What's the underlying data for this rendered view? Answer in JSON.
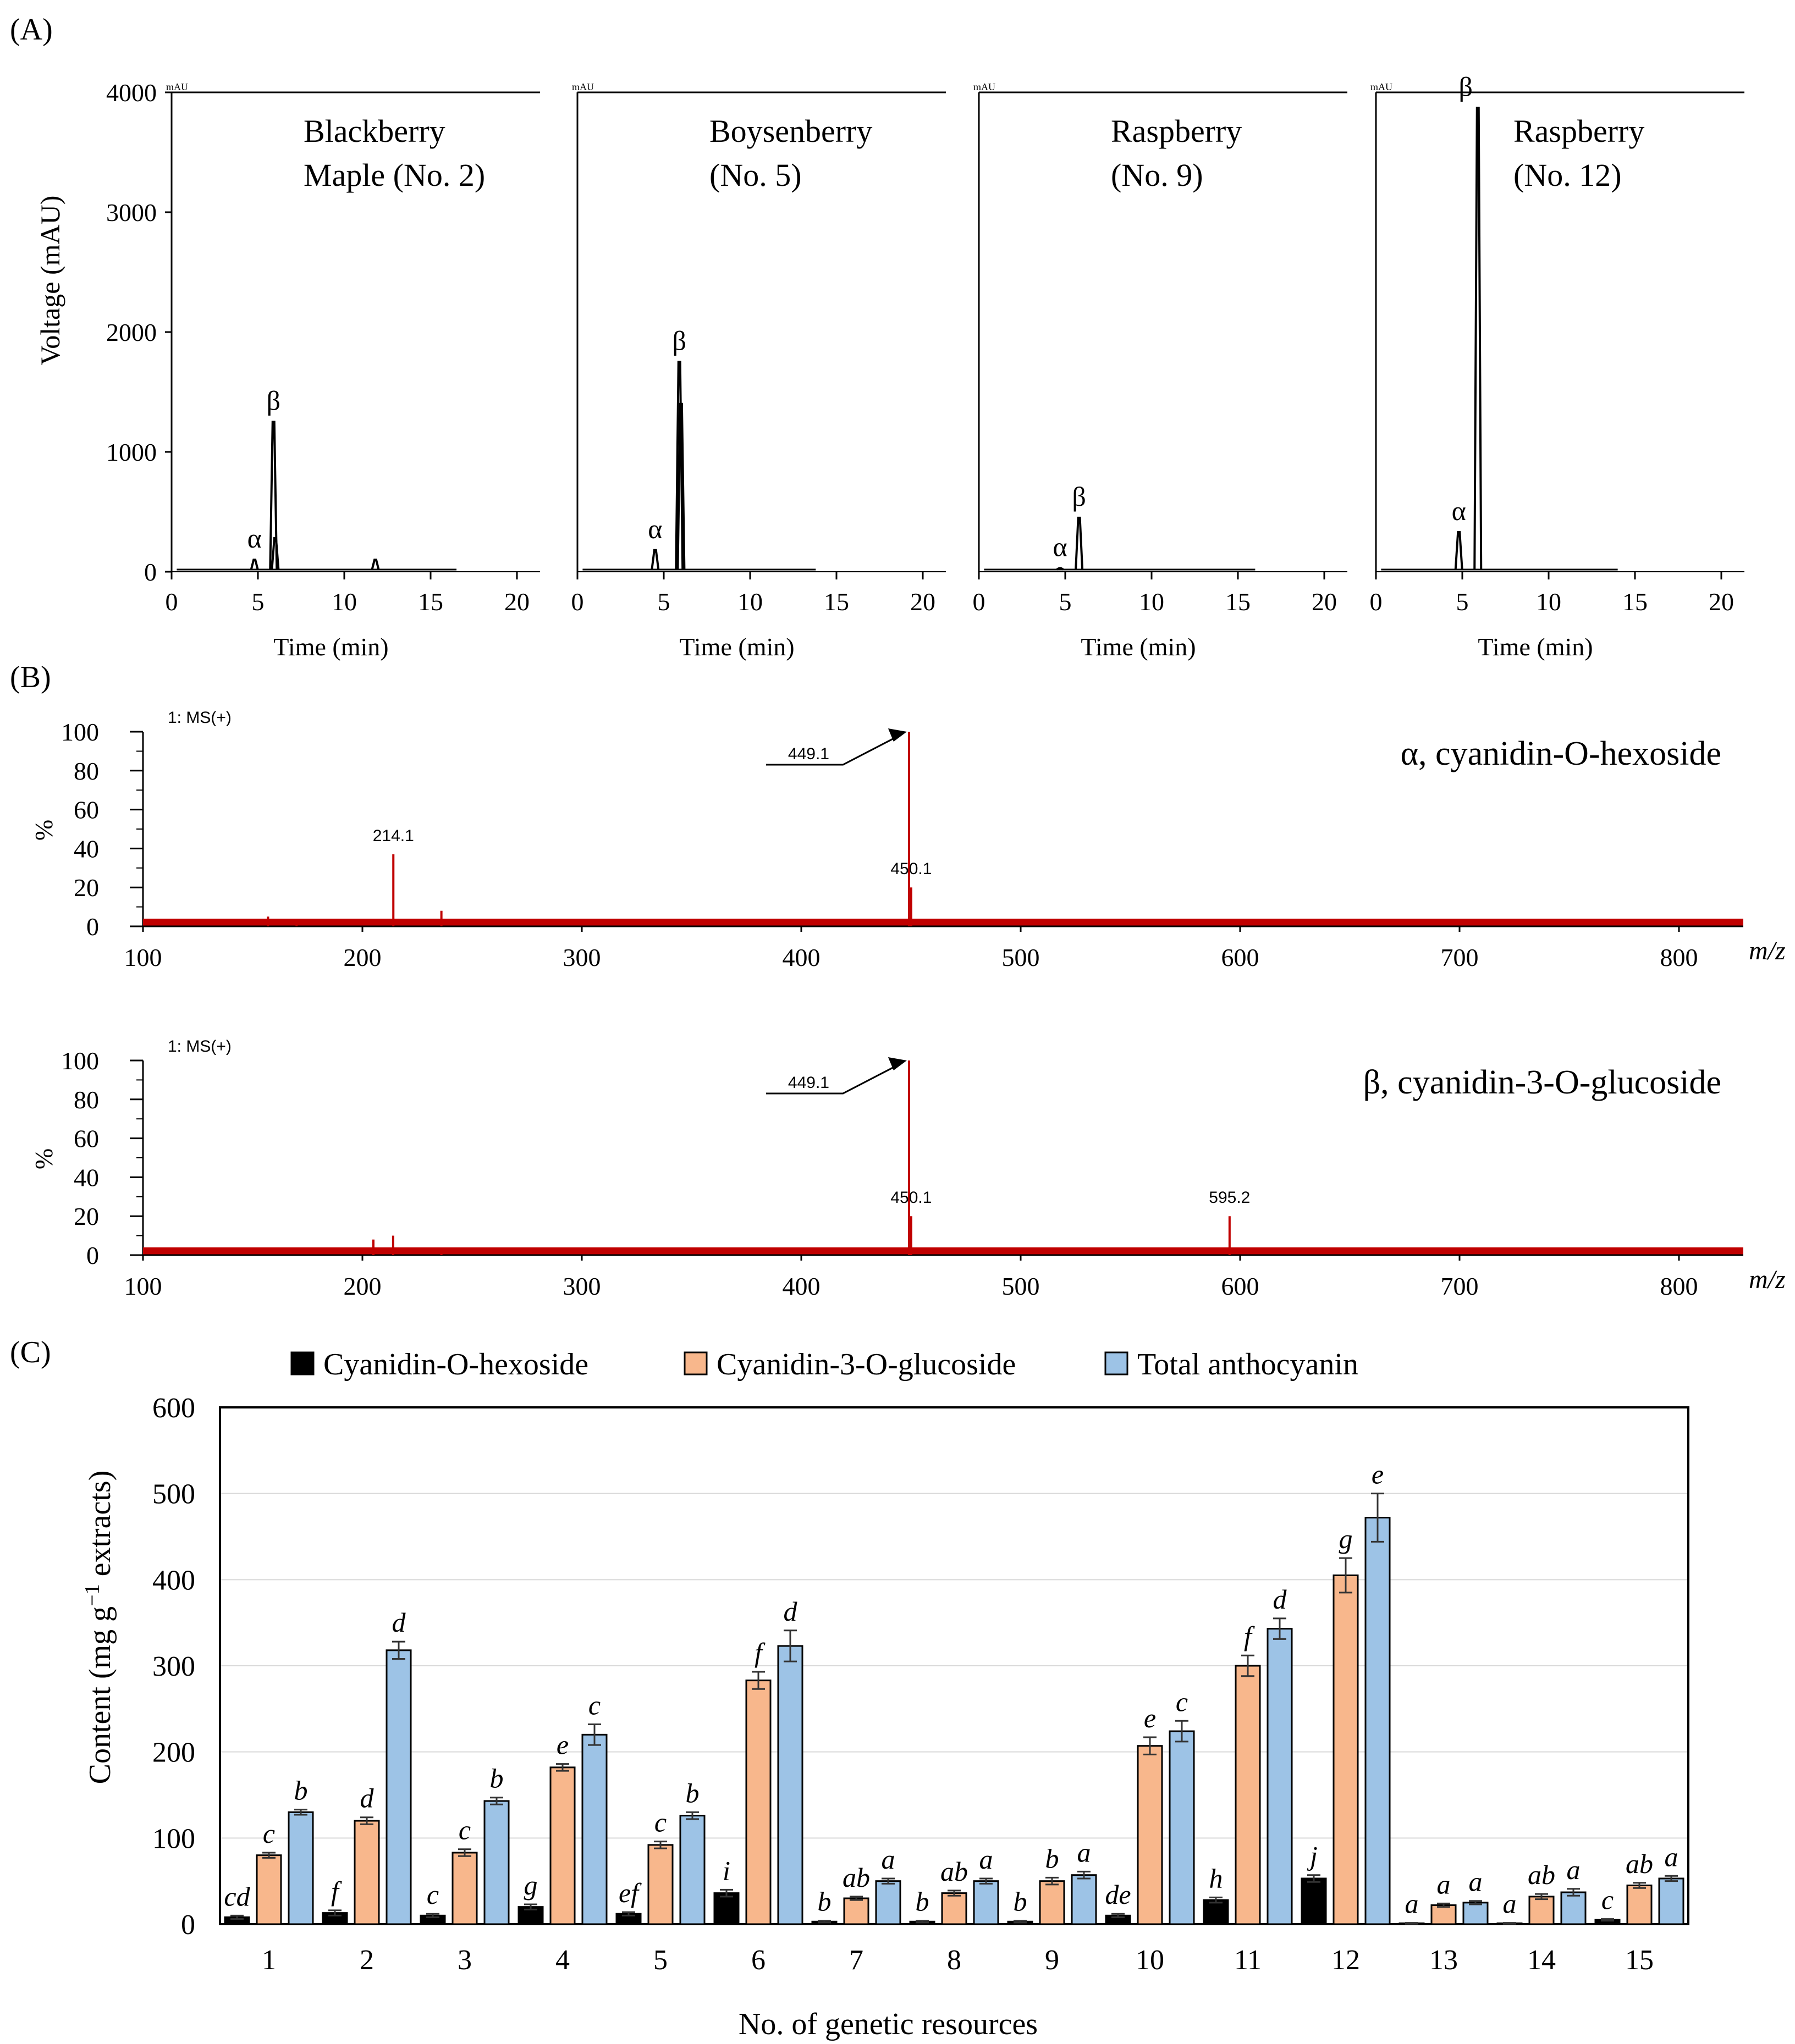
{
  "panel_labels": {
    "A": "(A)",
    "B": "(B)",
    "C": "(C)"
  },
  "colors": {
    "line": "#000000",
    "ms": "#c00000",
    "hexoside": "#000000",
    "glucoside": "#f8b78c",
    "total": "#9dc3e6",
    "grid": "#d9d9d9"
  },
  "chart_data": [
    {
      "type": "line",
      "panel": "A",
      "ylabel": "Voltage (mAU)",
      "xlabel": "Time (min)",
      "unit_label": "mAU",
      "ylim": [
        0,
        4000
      ],
      "xlim": [
        0,
        21
      ],
      "yticks": [
        "0",
        "1000",
        "2000",
        "3000",
        "4000"
      ],
      "xticks": [
        "0",
        "5",
        "10",
        "15",
        "20"
      ],
      "subplots": [
        {
          "title_line1": "Blackberry",
          "title_line2": "Maple (No. 2)",
          "end": 16.5,
          "peaks": [
            {
              "label": "α",
              "x": 4.8,
              "y": 100
            },
            {
              "label": "β",
              "x": 5.9,
              "y": 1250
            },
            {
              "label": "",
              "x": 6.0,
              "y": 280
            },
            {
              "label": "",
              "x": 11.8,
              "y": 100
            }
          ]
        },
        {
          "title_line1": "Boysenberry",
          "title_line2": "(No. 5)",
          "end": 13.8,
          "peaks": [
            {
              "label": "α",
              "x": 4.5,
              "y": 180
            },
            {
              "label": "β",
              "x": 5.9,
              "y": 1750
            },
            {
              "label": "",
              "x": 6.0,
              "y": 1400
            }
          ]
        },
        {
          "title_line1": "Raspberry",
          "title_line2": "(No. 9)",
          "end": 16.0,
          "peaks": [
            {
              "label": "α",
              "x": 4.7,
              "y": 30
            },
            {
              "label": "β",
              "x": 5.8,
              "y": 450
            }
          ]
        },
        {
          "title_line1": "Raspberry",
          "title_line2": "(No. 12)",
          "end": 14.0,
          "peaks": [
            {
              "label": "α",
              "x": 4.8,
              "y": 330
            },
            {
              "label": "β",
              "x": 5.9,
              "y": 3870
            }
          ]
        }
      ]
    },
    {
      "type": "bar",
      "panel": "B",
      "xlim": [
        100,
        825
      ],
      "ylim": [
        0,
        100
      ],
      "xticks": [
        "100",
        "200",
        "300",
        "400",
        "500",
        "600",
        "700",
        "800"
      ],
      "yticks": [
        "0",
        "20",
        "40",
        "60",
        "80",
        "100"
      ],
      "ylabel": "%",
      "xlabel": "m/z",
      "spectra": [
        {
          "name": "α, cyanidin-O-hexoside",
          "mode": "1: MS(+)",
          "peaks": [
            [
              157,
              5
            ],
            [
              170,
              3
            ],
            [
              214.1,
              37
            ],
            [
              236,
              8
            ],
            [
              449.1,
              100
            ],
            [
              450.1,
              20
            ]
          ],
          "annotations": [
            {
              "label": "214.1",
              "x": 214.1
            },
            {
              "label": "450.1",
              "x": 450.1
            }
          ],
          "arrow_label": "449.1",
          "arrow_x": 449.1
        },
        {
          "name": "β, cyanidin-3-O-glucoside",
          "mode": "1: MS(+)",
          "peaks": [
            [
              205,
              8
            ],
            [
              214,
              10
            ],
            [
              236,
              3
            ],
            [
              449.1,
              100
            ],
            [
              450.1,
              20
            ],
            [
              595.2,
              20
            ]
          ],
          "annotations": [
            {
              "label": "450.1",
              "x": 450.1
            },
            {
              "label": "595.2",
              "x": 595.2
            }
          ],
          "arrow_label": "449.1",
          "arrow_x": 449.1
        }
      ]
    },
    {
      "type": "bar",
      "panel": "C",
      "ylabel": "Content (mg g",
      "ylabel_sup": "−1",
      "ylabel_tail": " extracts)",
      "xlabel": "No. of genetic resources",
      "ylim": [
        0,
        600
      ],
      "yticks": [
        "0",
        "100",
        "200",
        "300",
        "400",
        "500",
        "600"
      ],
      "categories": [
        "1",
        "2",
        "3",
        "4",
        "5",
        "6",
        "7",
        "8",
        "9",
        "10",
        "11",
        "12",
        "13",
        "14",
        "15"
      ],
      "series": [
        {
          "name": "Cyanidin-O-hexoside",
          "values": [
            8,
            13,
            10,
            20,
            12,
            36,
            3,
            3,
            3,
            10,
            28,
            53,
            1,
            1,
            5
          ],
          "errors": [
            2,
            3,
            2,
            3,
            2,
            4,
            1,
            1,
            1,
            2,
            3,
            4,
            0.5,
            0.5,
            1
          ],
          "letters": [
            "cd",
            "f",
            "c",
            "g",
            "ef",
            "i",
            "b",
            "b",
            "b",
            "de",
            "h",
            "j",
            "a",
            "a",
            "c"
          ]
        },
        {
          "name": "Cyanidin-3-O-glucoside",
          "values": [
            80,
            120,
            83,
            182,
            92,
            283,
            30,
            36,
            50,
            207,
            300,
            405,
            22,
            32,
            45
          ],
          "errors": [
            3,
            4,
            4,
            4,
            4,
            10,
            2,
            3,
            4,
            10,
            12,
            20,
            2,
            3,
            3
          ],
          "letters": [
            "c",
            "d",
            "c",
            "e",
            "c",
            "f",
            "ab",
            "ab",
            "b",
            "e",
            "f",
            "g",
            "a",
            "ab",
            "ab"
          ]
        },
        {
          "name": "Total anthocyanin",
          "values": [
            130,
            318,
            143,
            220,
            126,
            323,
            50,
            50,
            57,
            224,
            343,
            472,
            25,
            37,
            53
          ],
          "errors": [
            3,
            10,
            4,
            12,
            4,
            18,
            3,
            3,
            4,
            12,
            12,
            28,
            2,
            4,
            3
          ],
          "letters": [
            "b",
            "d",
            "b",
            "c",
            "b",
            "d",
            "a",
            "a",
            "a",
            "c",
            "d",
            "e",
            "a",
            "a",
            "a"
          ]
        }
      ]
    }
  ]
}
